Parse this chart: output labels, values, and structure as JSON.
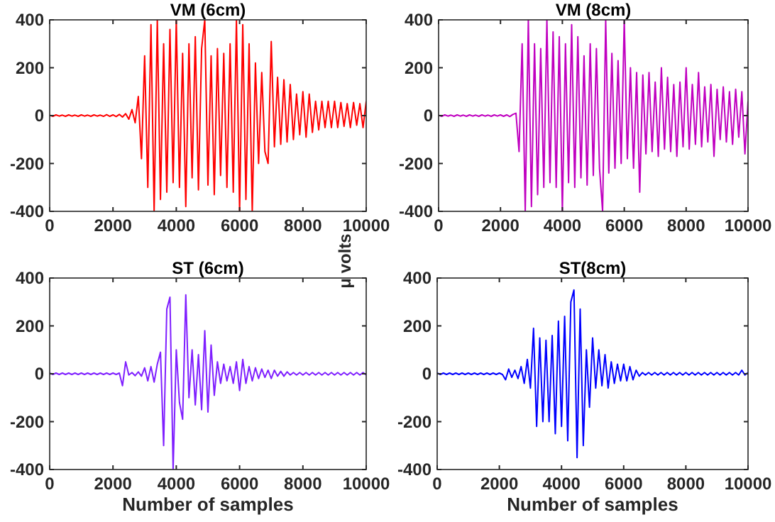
{
  "chart_data": [
    {
      "type": "line",
      "title": "VM (6cm)",
      "color": "#ff0000",
      "xlim": [
        0,
        10000
      ],
      "ylim": [
        -400,
        400
      ],
      "xticks": [
        0,
        2000,
        4000,
        6000,
        8000,
        10000
      ],
      "yticks": [
        -400,
        -200,
        0,
        200,
        400
      ],
      "x": [
        0,
        100,
        200,
        300,
        400,
        500,
        600,
        700,
        800,
        900,
        1000,
        1100,
        1200,
        1300,
        1400,
        1500,
        1600,
        1700,
        1800,
        1900,
        2000,
        2100,
        2200,
        2300,
        2400,
        2500,
        2600,
        2700,
        2800,
        2900,
        3000,
        3100,
        3200,
        3300,
        3400,
        3500,
        3600,
        3700,
        3800,
        3900,
        4000,
        4100,
        4200,
        4300,
        4400,
        4500,
        4600,
        4700,
        4800,
        4900,
        5000,
        5100,
        5200,
        5300,
        5400,
        5500,
        5600,
        5700,
        5800,
        5900,
        6000,
        6100,
        6200,
        6300,
        6400,
        6500,
        6600,
        6700,
        6800,
        6900,
        7000,
        7100,
        7200,
        7300,
        7400,
        7500,
        7600,
        7700,
        7800,
        7900,
        8000,
        8100,
        8200,
        8300,
        8400,
        8500,
        8600,
        8700,
        8800,
        8900,
        9000,
        9100,
        9200,
        9300,
        9400,
        9500,
        9600,
        9700,
        9800,
        9900,
        10000
      ],
      "values": [
        2,
        -3,
        3,
        -2,
        2,
        -3,
        3,
        -2,
        2,
        -3,
        3,
        -2,
        2,
        -3,
        3,
        -2,
        2,
        -3,
        4,
        -3,
        3,
        -4,
        5,
        -6,
        8,
        -15,
        25,
        -30,
        80,
        -180,
        250,
        -300,
        380,
        -400,
        400,
        -350,
        300,
        -320,
        360,
        -280,
        400,
        -300,
        260,
        -380,
        300,
        -260,
        330,
        -310,
        280,
        400,
        -290,
        250,
        -330,
        280,
        -250,
        260,
        -300,
        300,
        -320,
        400,
        -400,
        380,
        -350,
        300,
        -400,
        220,
        -200,
        180,
        -150,
        -200,
        310,
        -130,
        160,
        -120,
        150,
        -110,
        130,
        -100,
        90,
        -80,
        100,
        -90,
        90,
        -70,
        60,
        -60,
        60,
        -50,
        60,
        -50,
        60,
        -50,
        55,
        -45,
        50,
        -50,
        55,
        -40,
        50,
        -50,
        60
      ]
    },
    {
      "type": "line",
      "title": "VM (8cm)",
      "ylabel": "μ volts",
      "color": "#c000c0",
      "xlim": [
        0,
        10000
      ],
      "ylim": [
        -400,
        400
      ],
      "xticks": [
        0,
        2000,
        4000,
        6000,
        8000,
        10000
      ],
      "yticks": [
        -400,
        -200,
        0,
        200,
        400
      ],
      "x": [
        0,
        100,
        200,
        300,
        400,
        500,
        600,
        700,
        800,
        900,
        1000,
        1100,
        1200,
        1300,
        1400,
        1500,
        1600,
        1700,
        1800,
        1900,
        2000,
        2100,
        2200,
        2300,
        2400,
        2500,
        2600,
        2700,
        2800,
        2900,
        3000,
        3100,
        3200,
        3300,
        3400,
        3500,
        3600,
        3700,
        3800,
        3900,
        4000,
        4100,
        4200,
        4300,
        4400,
        4500,
        4600,
        4700,
        4800,
        4900,
        5000,
        5100,
        5200,
        5300,
        5400,
        5500,
        5600,
        5700,
        5800,
        5900,
        6000,
        6100,
        6200,
        6300,
        6400,
        6500,
        6600,
        6700,
        6800,
        6900,
        7000,
        7100,
        7200,
        7300,
        7400,
        7500,
        7600,
        7700,
        7800,
        7900,
        8000,
        8100,
        8200,
        8300,
        8400,
        8500,
        8600,
        8700,
        8800,
        8900,
        9000,
        9100,
        9200,
        9300,
        9400,
        9500,
        9600,
        9700,
        9800,
        9900,
        10000
      ],
      "values": [
        2,
        -3,
        3,
        -2,
        2,
        -3,
        3,
        -2,
        2,
        -3,
        3,
        -2,
        2,
        -3,
        3,
        -2,
        2,
        -3,
        3,
        -2,
        3,
        -3,
        3,
        -4,
        5,
        10,
        -150,
        300,
        -400,
        400,
        -380,
        300,
        -330,
        280,
        -300,
        400,
        -280,
        350,
        -300,
        330,
        -400,
        300,
        -280,
        380,
        -300,
        330,
        -260,
        250,
        -290,
        300,
        -250,
        280,
        -220,
        -400,
        400,
        -240,
        260,
        -220,
        230,
        -200,
        400,
        -180,
        200,
        -220,
        180,
        -320,
        170,
        -160,
        180,
        -150,
        140,
        -170,
        200,
        -140,
        160,
        -150,
        130,
        -170,
        140,
        -130,
        200,
        -140,
        130,
        -120,
        180,
        -130,
        120,
        -110,
        130,
        -170,
        110,
        -100,
        120,
        -110,
        100,
        -120,
        110,
        -90,
        100,
        -160,
        60
      ]
    },
    {
      "type": "line",
      "title": "ST (6cm)",
      "xlabel": "Number of samples",
      "color": "#7f1fff",
      "xlim": [
        0,
        10000
      ],
      "ylim": [
        -400,
        400
      ],
      "xticks": [
        0,
        2000,
        4000,
        6000,
        8000,
        10000
      ],
      "yticks": [
        -400,
        -200,
        0,
        200,
        400
      ],
      "x": [
        0,
        100,
        200,
        300,
        400,
        500,
        600,
        700,
        800,
        900,
        1000,
        1100,
        1200,
        1300,
        1400,
        1500,
        1600,
        1700,
        1800,
        1900,
        2000,
        2100,
        2200,
        2300,
        2400,
        2500,
        2600,
        2700,
        2800,
        2900,
        3000,
        3100,
        3200,
        3300,
        3400,
        3500,
        3600,
        3700,
        3800,
        3900,
        4000,
        4100,
        4200,
        4300,
        4400,
        4500,
        4600,
        4700,
        4800,
        4900,
        5000,
        5100,
        5200,
        5300,
        5400,
        5500,
        5600,
        5700,
        5800,
        5900,
        6000,
        6100,
        6200,
        6300,
        6400,
        6500,
        6600,
        6700,
        6800,
        6900,
        7000,
        7100,
        7200,
        7300,
        7400,
        7500,
        7600,
        7700,
        7800,
        7900,
        8000,
        8100,
        8200,
        8300,
        8400,
        8500,
        8600,
        8700,
        8800,
        8900,
        9000,
        9100,
        9200,
        9300,
        9400,
        9500,
        9600,
        9700,
        9800,
        9900,
        10000
      ],
      "values": [
        3,
        -3,
        3,
        -3,
        3,
        -3,
        3,
        -3,
        3,
        -3,
        3,
        -3,
        3,
        -3,
        3,
        -3,
        3,
        -3,
        3,
        -3,
        3,
        -3,
        3,
        -50,
        50,
        -5,
        5,
        -8,
        8,
        -10,
        25,
        -30,
        30,
        -35,
        40,
        90,
        -300,
        270,
        320,
        -400,
        100,
        -120,
        -190,
        330,
        -100,
        100,
        -130,
        80,
        -150,
        180,
        -160,
        120,
        -90,
        50,
        -40,
        40,
        -30,
        30,
        -40,
        50,
        -70,
        60,
        -40,
        30,
        -30,
        25,
        -20,
        20,
        -15,
        15,
        -20,
        15,
        -10,
        10,
        -10,
        8,
        -5,
        5,
        -5,
        5,
        -5,
        5,
        -5,
        5,
        -5,
        5,
        -5,
        5,
        -5,
        5,
        -5,
        5,
        -5,
        5,
        -5,
        5,
        -5,
        5,
        -5,
        5,
        -5
      ]
    },
    {
      "type": "line",
      "title": "ST(8cm)",
      "xlabel": "Number of samples",
      "color": "#0000ff",
      "xlim": [
        0,
        10000
      ],
      "ylim": [
        -400,
        400
      ],
      "xticks": [
        0,
        2000,
        4000,
        6000,
        8000,
        10000
      ],
      "yticks": [
        -400,
        -200,
        0,
        200,
        400
      ],
      "x": [
        0,
        100,
        200,
        300,
        400,
        500,
        600,
        700,
        800,
        900,
        1000,
        1100,
        1200,
        1300,
        1400,
        1500,
        1600,
        1700,
        1800,
        1900,
        2000,
        2100,
        2200,
        2300,
        2400,
        2500,
        2600,
        2700,
        2800,
        2900,
        3000,
        3100,
        3200,
        3300,
        3400,
        3500,
        3600,
        3700,
        3800,
        3900,
        4000,
        4100,
        4200,
        4300,
        4400,
        4500,
        4600,
        4700,
        4800,
        4900,
        5000,
        5100,
        5200,
        5300,
        5400,
        5500,
        5600,
        5700,
        5800,
        5900,
        6000,
        6100,
        6200,
        6300,
        6400,
        6500,
        6600,
        6700,
        6800,
        6900,
        7000,
        7100,
        7200,
        7300,
        7400,
        7500,
        7600,
        7700,
        7800,
        7900,
        8000,
        8100,
        8200,
        8300,
        8400,
        8500,
        8600,
        8700,
        8800,
        8900,
        9000,
        9100,
        9200,
        9300,
        9400,
        9500,
        9600,
        9700,
        9800,
        9900,
        10000
      ],
      "values": [
        3,
        -3,
        3,
        -3,
        3,
        -3,
        3,
        -3,
        3,
        -3,
        3,
        -3,
        3,
        -3,
        3,
        -3,
        3,
        -3,
        3,
        -3,
        3,
        -3,
        -25,
        20,
        -15,
        15,
        -20,
        30,
        -40,
        60,
        -60,
        190,
        -220,
        150,
        -200,
        140,
        -200,
        160,
        -250,
        220,
        -220,
        240,
        -280,
        300,
        350,
        -350,
        270,
        -300,
        100,
        -140,
        150,
        -60,
        100,
        -50,
        80,
        -60,
        50,
        -40,
        40,
        -30,
        40,
        -30,
        30,
        -25,
        15,
        -10,
        5,
        -5,
        5,
        -5,
        5,
        -5,
        5,
        -5,
        5,
        -5,
        5,
        -5,
        5,
        -5,
        5,
        -5,
        5,
        -5,
        5,
        -5,
        5,
        -5,
        5,
        -5,
        5,
        -5,
        5,
        -5,
        5,
        -5,
        5,
        -5,
        15,
        -5,
        5
      ]
    }
  ]
}
